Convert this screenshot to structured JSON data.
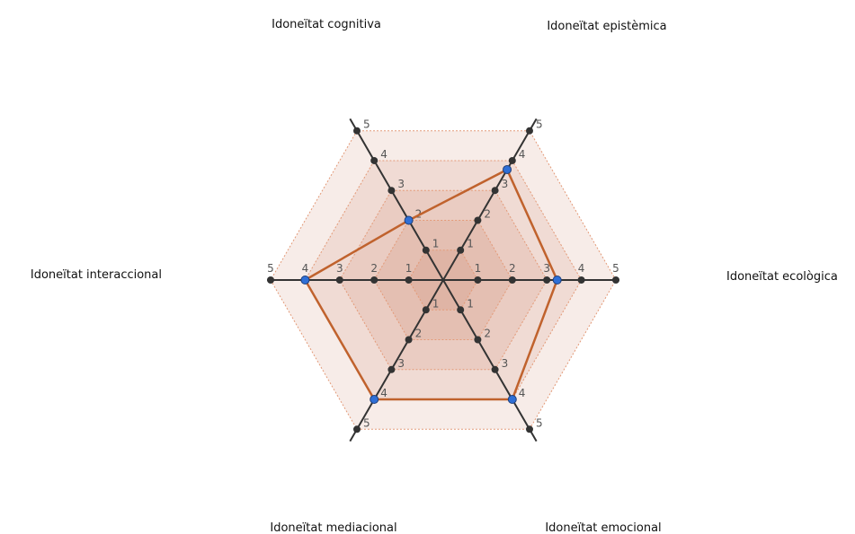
{
  "chart_data": {
    "type": "radar",
    "title": "",
    "axes": [
      "Idoneïtat ecològica",
      "Idoneïtat epistèmica",
      "Idoneïtat cognitiva",
      "Idoneïtat interaccional",
      "Idoneïtat mediacional",
      "Idoneïtat emocional"
    ],
    "scale": {
      "min": 0,
      "max": 5,
      "ticks": [
        "1",
        "2",
        "3",
        "4",
        "5"
      ]
    },
    "series": [
      {
        "values": [
          3.3,
          3.7,
          2.0,
          4.0,
          4.0,
          4.0
        ]
      }
    ],
    "colors": {
      "band_fill": "#c5704a",
      "band_outline": "#e39a78",
      "series_line": "#c0622d",
      "series_point": "#2f6fd6",
      "axis": "#333333",
      "tick_point": "#333333"
    }
  }
}
